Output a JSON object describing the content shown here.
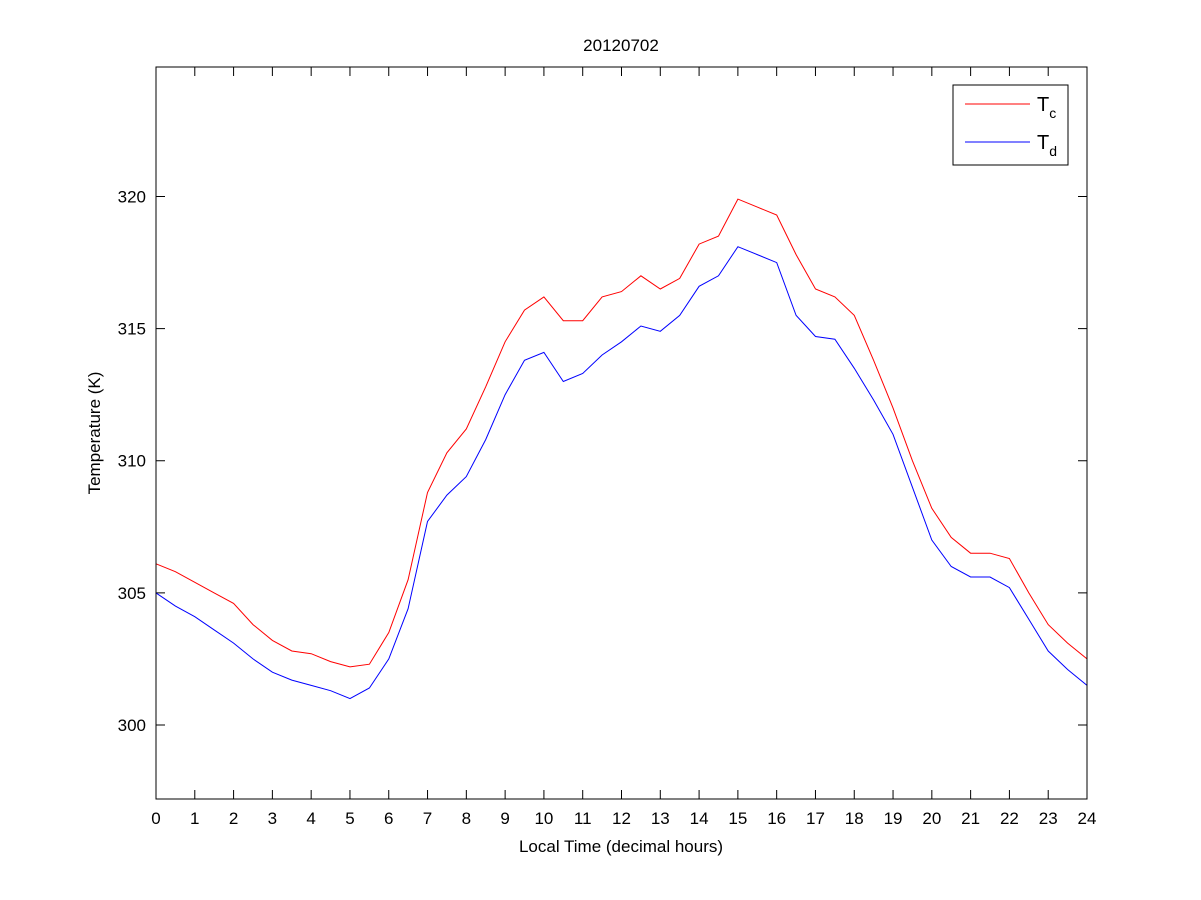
{
  "chart_data": {
    "type": "line",
    "title": "20120702",
    "xlabel": "Local Time (decimal hours)",
    "ylabel": "Temperature (K)",
    "xlim": [
      0,
      24
    ],
    "ylim": [
      297.2,
      324.9
    ],
    "xticks": [
      0,
      1,
      2,
      3,
      4,
      5,
      6,
      7,
      8,
      9,
      10,
      11,
      12,
      13,
      14,
      15,
      16,
      17,
      18,
      19,
      20,
      21,
      22,
      23,
      24
    ],
    "yticks": [
      300,
      305,
      310,
      315,
      320
    ],
    "grid": false,
    "legend_position": "top-right",
    "x": [
      0,
      0.5,
      1,
      1.5,
      2,
      2.5,
      3,
      3.5,
      4,
      4.5,
      5,
      5.5,
      6,
      6.5,
      7,
      7.5,
      8,
      8.5,
      9,
      9.5,
      10,
      10.5,
      11,
      11.5,
      12,
      12.5,
      13,
      13.5,
      14,
      14.5,
      15,
      15.5,
      16,
      16.5,
      17,
      17.5,
      18,
      18.5,
      19,
      19.5,
      20,
      20.5,
      21,
      21.5,
      22,
      22.5,
      23,
      23.5,
      24
    ],
    "series": [
      {
        "name": "T",
        "subscript": "c",
        "color": "#ff0000",
        "values": [
          306.1,
          305.8,
          305.4,
          305.0,
          304.6,
          303.8,
          303.2,
          302.8,
          302.7,
          302.4,
          302.2,
          302.3,
          303.5,
          305.5,
          308.8,
          310.3,
          311.2,
          312.8,
          314.5,
          315.7,
          316.2,
          315.3,
          315.3,
          316.2,
          316.4,
          317.0,
          316.5,
          316.9,
          318.2,
          318.5,
          319.9,
          319.6,
          319.3,
          317.8,
          316.5,
          316.2,
          315.5,
          313.8,
          312.0,
          310.0,
          308.2,
          307.1,
          306.5,
          306.5,
          306.3,
          305.0,
          303.8,
          303.1,
          302.5
        ]
      },
      {
        "name": "T",
        "subscript": "d",
        "color": "#0000ff",
        "values": [
          305.0,
          304.5,
          304.1,
          303.6,
          303.1,
          302.5,
          302.0,
          301.7,
          301.5,
          301.3,
          301.0,
          301.4,
          302.5,
          304.4,
          307.7,
          308.7,
          309.4,
          310.8,
          312.5,
          313.8,
          314.1,
          313.0,
          313.3,
          314.0,
          314.5,
          315.1,
          314.9,
          315.5,
          316.6,
          317.0,
          318.1,
          317.8,
          317.5,
          315.5,
          314.7,
          314.6,
          313.5,
          312.3,
          311.0,
          309.0,
          307.0,
          306.0,
          305.6,
          305.6,
          305.2,
          304.0,
          302.8,
          302.1,
          301.5
        ]
      }
    ]
  }
}
